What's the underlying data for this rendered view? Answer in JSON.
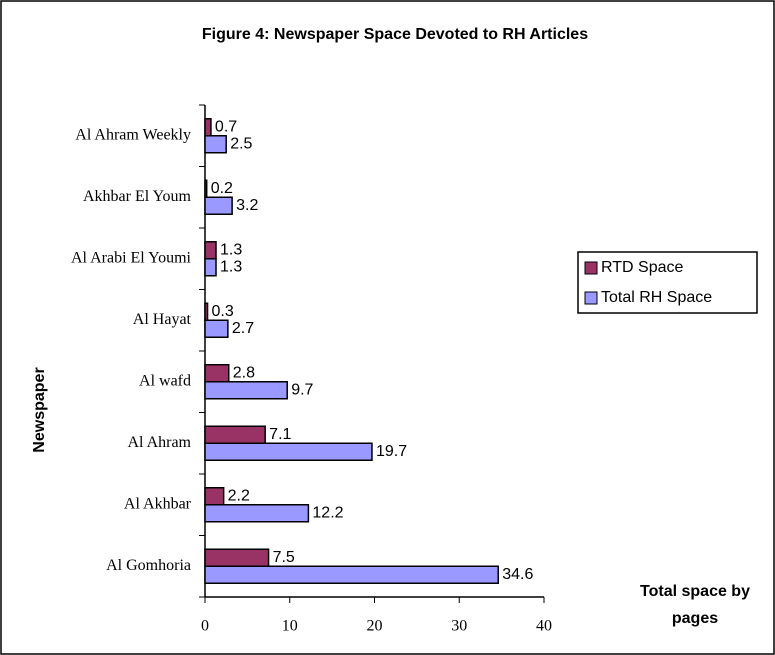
{
  "chart_data": {
    "type": "hbar",
    "title": "Figure 4: Newspaper Space Devoted to RH Articles",
    "y_label": "Newspaper",
    "x_label": "Total space by pages",
    "categories": [
      "Al Ahram Weekly",
      "Akhbar El Youm",
      "Al Arabi El Youmi",
      "Al Hayat",
      "Al wafd",
      "Al Ahram",
      "Al Akhbar",
      "Al Gomhoria"
    ],
    "series": [
      {
        "name": "RTD Space",
        "color": "#993366",
        "values": [
          0.7,
          0.2,
          1.3,
          0.3,
          2.8,
          7.1,
          2.2,
          7.5
        ]
      },
      {
        "name": "Total RH Space",
        "color": "#9999ff",
        "values": [
          2.5,
          3.2,
          1.3,
          2.7,
          9.7,
          19.7,
          12.2,
          34.6
        ]
      }
    ],
    "xlim": [
      0,
      40
    ],
    "xticks": [
      0,
      10,
      20,
      30,
      40
    ],
    "legend": "right"
  }
}
